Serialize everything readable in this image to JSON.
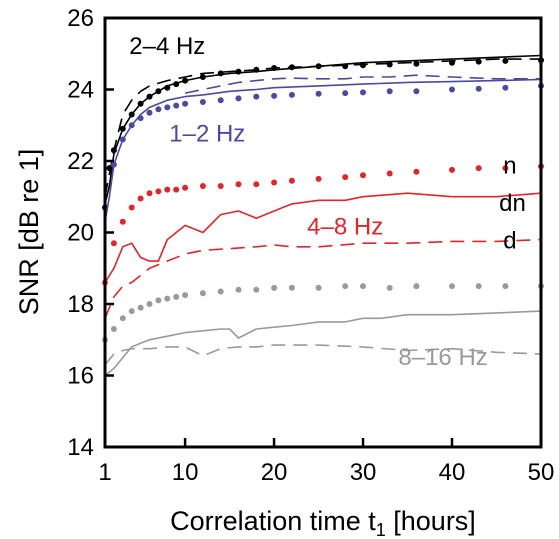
{
  "chart_data": {
    "type": "line",
    "xlabel": "Correlation time t",
    "xlabel_subscript": "1",
    "xlabel_suffix": " [hours]",
    "ylabel": "SNR [dB re 1]",
    "xlim": [
      1,
      50
    ],
    "ylim": [
      14,
      26
    ],
    "x_ticks": [
      1,
      10,
      20,
      30,
      40,
      50
    ],
    "y_ticks": [
      14,
      16,
      18,
      20,
      22,
      24,
      26
    ],
    "grid": false,
    "colors": {
      "band_2_4": "#000000",
      "band_1_2": "#4b4aa0",
      "band_4_8": "#e0262b",
      "band_8_16": "#9a9a9a"
    },
    "series": [
      {
        "group": "2–4 Hz",
        "style": "solid",
        "color": "band_2_4",
        "x": [
          1,
          1.5,
          2,
          3,
          4,
          5,
          6,
          8,
          10,
          12,
          15,
          18,
          20,
          25,
          30,
          35,
          40,
          45,
          50
        ],
        "y": [
          20.8,
          21.3,
          22.2,
          22.9,
          23.3,
          23.6,
          23.8,
          24.1,
          24.25,
          24.35,
          24.45,
          24.5,
          24.55,
          24.65,
          24.75,
          24.8,
          24.85,
          24.9,
          24.95
        ]
      },
      {
        "group": "2–4 Hz",
        "style": "dashed",
        "color": "band_2_4",
        "x": [
          1,
          2,
          3,
          4,
          5,
          6,
          8,
          10,
          12,
          15,
          18,
          20,
          25,
          30,
          35,
          40,
          45,
          50
        ],
        "y": [
          21.0,
          22.3,
          23.3,
          23.7,
          23.95,
          24.1,
          24.25,
          24.35,
          24.45,
          24.5,
          24.55,
          24.6,
          24.65,
          24.7,
          24.75,
          24.8,
          24.85,
          24.85
        ]
      },
      {
        "group": "2–4 Hz",
        "style": "dotted",
        "color": "band_2_4",
        "x": [
          1,
          1.5,
          2,
          3,
          4,
          5,
          6,
          7,
          8,
          9,
          10,
          12,
          14,
          16,
          18,
          20,
          22,
          25,
          28,
          30,
          33,
          36,
          40,
          43,
          46,
          50
        ],
        "y": [
          20.7,
          21.8,
          22.3,
          22.9,
          23.3,
          23.6,
          23.8,
          23.95,
          24.05,
          24.15,
          24.25,
          24.35,
          24.45,
          24.5,
          24.55,
          24.6,
          24.62,
          24.65,
          24.65,
          24.68,
          24.7,
          24.72,
          24.75,
          24.78,
          24.8,
          24.82
        ]
      },
      {
        "group": "1–2 Hz",
        "style": "solid",
        "color": "band_1_2",
        "x": [
          1,
          1.5,
          2,
          3,
          4,
          5,
          6,
          8,
          10,
          12,
          15,
          18,
          20,
          25,
          30,
          35,
          40,
          45,
          50
        ],
        "y": [
          20.3,
          21.0,
          21.9,
          22.6,
          23.0,
          23.3,
          23.5,
          23.7,
          23.8,
          23.85,
          23.95,
          24.0,
          24.05,
          24.1,
          24.15,
          24.2,
          24.22,
          24.25,
          24.28
        ]
      },
      {
        "group": "1–2 Hz",
        "style": "dashed",
        "color": "band_1_2",
        "x": [
          10,
          12,
          14,
          16,
          18,
          20,
          22,
          25,
          28,
          30,
          33,
          36,
          40,
          45,
          50
        ],
        "y": [
          23.9,
          24.0,
          24.1,
          24.2,
          24.25,
          24.3,
          24.32,
          24.3,
          24.3,
          24.35,
          24.35,
          24.4,
          24.35,
          24.3,
          24.3
        ]
      },
      {
        "group": "1–2 Hz",
        "style": "dotted",
        "color": "band_1_2",
        "x": [
          2,
          3,
          4,
          5,
          6,
          7,
          8,
          9,
          10,
          12,
          14,
          16,
          18,
          20,
          22,
          25,
          28,
          30,
          33,
          36,
          40,
          43,
          46,
          50
        ],
        "y": [
          21.9,
          22.6,
          23.0,
          23.2,
          23.35,
          23.45,
          23.5,
          23.55,
          23.6,
          23.65,
          23.7,
          23.75,
          23.8,
          23.82,
          23.85,
          23.88,
          23.9,
          23.92,
          23.95,
          23.95,
          24.0,
          24.02,
          24.05,
          24.1
        ]
      },
      {
        "group": "4–8 Hz",
        "style": "solid",
        "color": "band_4_8",
        "x": [
          1,
          2,
          3,
          4,
          5,
          6,
          7,
          8,
          10,
          12,
          14,
          16,
          18,
          20,
          22,
          25,
          28,
          30,
          35,
          40,
          45,
          50
        ],
        "y": [
          18.6,
          19.0,
          19.6,
          19.7,
          19.3,
          19.2,
          19.2,
          19.8,
          20.2,
          20.0,
          20.5,
          20.6,
          20.4,
          20.6,
          20.8,
          20.9,
          20.9,
          21.0,
          21.1,
          21.0,
          21.0,
          21.1
        ]
      },
      {
        "group": "4–8 Hz",
        "style": "dashed",
        "color": "band_4_8",
        "x": [
          1,
          2,
          3,
          4,
          5,
          6,
          8,
          10,
          12,
          15,
          18,
          20,
          22,
          25,
          30,
          35,
          40,
          45,
          50
        ],
        "y": [
          17.6,
          18.2,
          18.5,
          18.6,
          18.8,
          19.0,
          19.2,
          19.4,
          19.5,
          19.55,
          19.6,
          19.65,
          19.6,
          19.6,
          19.7,
          19.7,
          19.75,
          19.75,
          19.8
        ]
      },
      {
        "group": "4–8 Hz",
        "style": "dotted",
        "color": "band_4_8",
        "x": [
          1,
          2,
          3,
          4,
          5,
          6,
          7,
          8,
          9,
          10,
          12,
          14,
          16,
          18,
          20,
          22,
          25,
          28,
          30,
          33,
          36,
          40,
          43,
          46,
          50
        ],
        "y": [
          18.6,
          19.7,
          20.3,
          20.7,
          20.95,
          21.1,
          21.15,
          21.2,
          21.2,
          21.25,
          21.3,
          21.3,
          21.35,
          21.35,
          21.4,
          21.45,
          21.5,
          21.55,
          21.6,
          21.65,
          21.7,
          21.75,
          21.8,
          21.8,
          21.85
        ]
      },
      {
        "group": "8–16 Hz",
        "style": "solid",
        "color": "band_8_16",
        "x": [
          1,
          2,
          3,
          4,
          5,
          6,
          8,
          10,
          12,
          14,
          15,
          16,
          18,
          20,
          22,
          25,
          28,
          30,
          32,
          35,
          40,
          45,
          50
        ],
        "y": [
          16.0,
          16.2,
          16.5,
          16.8,
          16.9,
          17.0,
          17.1,
          17.2,
          17.25,
          17.3,
          17.3,
          17.05,
          17.3,
          17.35,
          17.4,
          17.5,
          17.5,
          17.6,
          17.6,
          17.7,
          17.7,
          17.75,
          17.8
        ]
      },
      {
        "group": "8–16 Hz",
        "style": "dashed",
        "color": "band_8_16",
        "x": [
          1,
          2,
          3,
          4,
          5,
          6,
          8,
          10,
          12,
          14,
          16,
          18,
          20,
          25,
          30,
          35,
          40,
          45,
          50
        ],
        "y": [
          16.3,
          16.6,
          16.7,
          16.75,
          16.75,
          16.75,
          16.8,
          16.8,
          16.55,
          16.75,
          16.8,
          16.8,
          16.85,
          16.85,
          16.8,
          16.7,
          16.75,
          16.65,
          16.6
        ]
      },
      {
        "group": "8–16 Hz",
        "style": "dotted",
        "color": "band_8_16",
        "x": [
          1,
          2,
          3,
          4,
          5,
          6,
          7,
          8,
          9,
          10,
          12,
          14,
          16,
          18,
          20,
          22,
          25,
          28,
          30,
          33,
          36,
          40,
          43,
          46,
          50
        ],
        "y": [
          17.0,
          17.3,
          17.6,
          17.8,
          17.9,
          18.0,
          18.1,
          18.15,
          18.2,
          18.25,
          18.3,
          18.35,
          18.4,
          18.4,
          18.45,
          18.45,
          18.45,
          18.5,
          18.5,
          18.45,
          18.5,
          18.5,
          18.5,
          18.5,
          18.5
        ]
      }
    ],
    "annotations": [
      {
        "text": "2–4 Hz",
        "color": "band_2_4",
        "x": 8.0,
        "y": 25.0
      },
      {
        "text": "1–2 Hz",
        "color": "band_1_2",
        "x": 12.5,
        "y": 22.55
      },
      {
        "text": "4–8 Hz",
        "color": "band_4_8",
        "x": 28.0,
        "y": 19.95
      },
      {
        "text": "8–16 Hz",
        "color": "band_8_16",
        "x": 39.0,
        "y": 16.3
      },
      {
        "text": "n",
        "color": "band_2_4",
        "x": 46.5,
        "y": 21.65
      },
      {
        "text": "dn",
        "color": "band_2_4",
        "x": 46.8,
        "y": 20.6
      },
      {
        "text": "d",
        "color": "band_2_4",
        "x": 46.5,
        "y": 19.55
      }
    ]
  }
}
